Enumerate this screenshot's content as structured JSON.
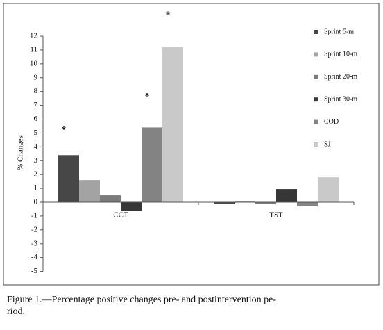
{
  "chart_data": {
    "type": "bar",
    "y_label": "% Changes",
    "categories": [
      "CCT",
      "TST"
    ],
    "series": [
      {
        "name": "Sprint 5-m",
        "color": "#474747",
        "values": [
          3.4,
          -0.15
        ]
      },
      {
        "name": "Sprint 10-m",
        "color": "#a3a3a3",
        "values": [
          1.6,
          0.1
        ]
      },
      {
        "name": "Sprint 20-m",
        "color": "#7b7b7b",
        "values": [
          0.5,
          -0.15
        ]
      },
      {
        "name": "Sprint 30-m",
        "color": "#363636",
        "values": [
          -0.65,
          0.95
        ]
      },
      {
        "name": "COD",
        "color": "#838383",
        "values": [
          5.4,
          -0.3
        ]
      },
      {
        "name": "SJ",
        "color": "#c9c9c9",
        "values": [
          11.2,
          1.8
        ]
      }
    ],
    "annotations": [
      {
        "text": "*",
        "series": 0,
        "category": 0
      },
      {
        "text": "*",
        "series": 4,
        "category": 0
      },
      {
        "text": "*",
        "series": 5,
        "category": 0
      }
    ],
    "ylim": [
      -5,
      12
    ],
    "yticks": [
      -5,
      -4,
      -3,
      -2,
      -1,
      0,
      1,
      2,
      3,
      4,
      5,
      6,
      7,
      8,
      9,
      10,
      11,
      12
    ],
    "legend": "right",
    "caption": [
      "Figure 1.—Percentage positive changes pre- and postintervention pe-",
      "riod."
    ]
  }
}
